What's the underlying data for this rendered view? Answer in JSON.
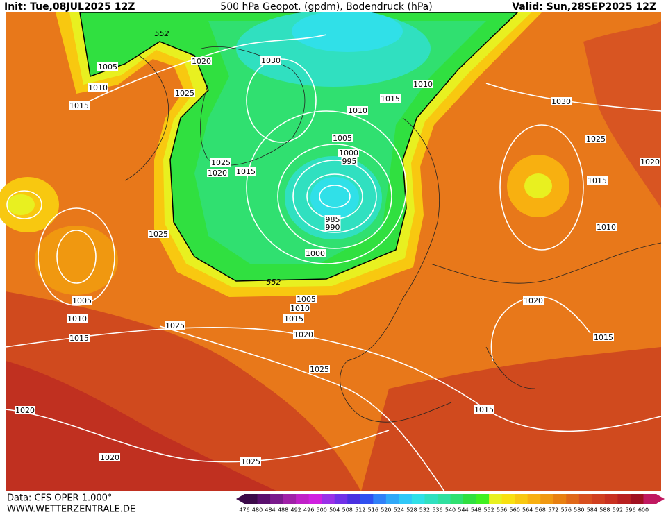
{
  "header": {
    "init": "Init: Tue,08JUL2025 12Z",
    "title": "500 hPa Geopot. (gpdm), Bodendruck (hPa)",
    "valid": "Valid: Sun,28SEP2025 12Z"
  },
  "isobar_labels": [
    1005,
    1010,
    1015,
    1020,
    1025,
    1030,
    1010,
    1015,
    1010,
    1005,
    1000,
    995,
    985,
    990,
    1000,
    1025,
    1020,
    1015,
    1025,
    1005,
    1010,
    1015,
    1025,
    1005,
    1010,
    1015,
    1020,
    1025,
    1030,
    1025,
    1020,
    1015,
    1010,
    1020,
    1015,
    1020,
    1020,
    1025,
    1015
  ],
  "contour_labels": [
    552,
    552
  ],
  "footer": {
    "data": "Data: CFS OPER 1.000°",
    "url": "WWW.WETTERZENTRALE.DE"
  },
  "scale": {
    "labels": [
      476,
      480,
      484,
      488,
      492,
      496,
      500,
      504,
      508,
      512,
      516,
      520,
      524,
      528,
      532,
      536,
      540,
      544,
      548,
      552,
      556,
      560,
      564,
      568,
      572,
      576,
      580,
      584,
      588,
      592,
      596,
      600
    ],
    "colors": [
      "#3c0a4a",
      "#5a0f6e",
      "#7a1a8c",
      "#a020a8",
      "#c020c8",
      "#d020e0",
      "#9a30e8",
      "#7030e8",
      "#4a30e0",
      "#3050f0",
      "#3080f8",
      "#30a8f8",
      "#30c8f8",
      "#30e0e8",
      "#30e0c0",
      "#30e0a0",
      "#30e070",
      "#30e040",
      "#40f020",
      "#e8f020",
      "#f8e010",
      "#f8c810",
      "#f8b010",
      "#f09810",
      "#e88010",
      "#e06818",
      "#d85020",
      "#d04020",
      "#c83020",
      "#b82020",
      "#a01020",
      "#c01860"
    ]
  }
}
